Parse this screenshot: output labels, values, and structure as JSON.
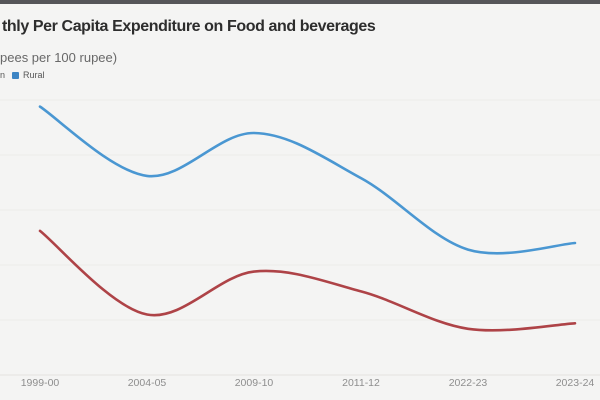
{
  "page": {
    "background": "#f4f4f3",
    "top_bar_color": "#565659"
  },
  "header": {
    "title": "thly Per Capita Expenditure on Food and beverages",
    "subtitle": "pees per 100 rupee)"
  },
  "legend": {
    "items": [
      {
        "label": "n",
        "note": "first legend item cropped by left edge of screenshot, swatch not visible"
      },
      {
        "label": "Rural",
        "color": "#3d85c4"
      }
    ]
  },
  "chart_data": {
    "type": "line",
    "title": "thly Per Capita Expenditure on Food and beverages",
    "subtitle": "pees per 100 rupee)",
    "categories": [
      "1999-00",
      "2004-05",
      "2009-10",
      "2011-12",
      "2022-23",
      "2023-24"
    ],
    "series": [
      {
        "name": "Rural",
        "color": "#4a97d2",
        "values": [
          59.4,
          53.1,
          57.0,
          52.9,
          46.4,
          47.0
        ]
      },
      {
        "name": "n",
        "label_cropped": true,
        "color": "#ae4347",
        "values": [
          48.1,
          40.5,
          44.4,
          42.6,
          39.2,
          39.7
        ]
      }
    ],
    "ylim": [
      35,
      60
    ],
    "y_gridlines": [
      40,
      45,
      50,
      55,
      60
    ],
    "grid": "horizontal-only",
    "yticks_visible": false,
    "legend_position": "top-left",
    "line_style": "smoothed",
    "gridline_color": "#edece9",
    "axis_line_color": "#e3e2df",
    "tick_label_color": "#8e8e8e"
  }
}
